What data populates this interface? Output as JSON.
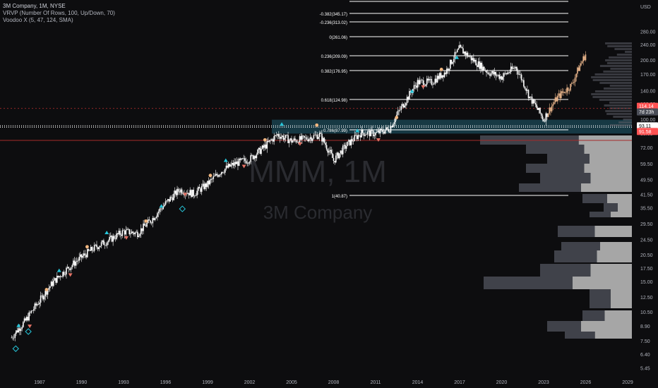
{
  "legend": {
    "symbol_line": "3M Company, 1M, NYSE",
    "vrvp_line": "VRVP (Number Of Rows, 100, Up/Down, 70)",
    "voodoo_line": "Voodoo X (5, 47, 124, SMA)"
  },
  "watermark": {
    "ticker": "MMM, 1M",
    "name": "3M Company"
  },
  "price_axis": {
    "currency": "USD",
    "ticks": [
      "280.00",
      "240.00",
      "200.00",
      "170.00",
      "140.00",
      "120.00",
      "100.00",
      "85.00",
      "72.00",
      "59.50",
      "49.50",
      "41.50",
      "35.50",
      "29.50",
      "24.50",
      "20.50",
      "17.50",
      "15.00",
      "12.50",
      "10.50",
      "8.90",
      "7.50",
      "6.40",
      "5.45"
    ],
    "badges": [
      {
        "label": "114.14",
        "color": "#ff5252"
      },
      {
        "label": "7d 23h",
        "color": "#4b4e58"
      },
      {
        "label": "93.11",
        "color": "#ffffff"
      },
      {
        "label": "91.58",
        "color": "#ff5252"
      }
    ]
  },
  "time_axis": {
    "ticks": [
      "1987",
      "1990",
      "1993",
      "1996",
      "1999",
      "2002",
      "2005",
      "2008",
      "2011",
      "2014",
      "2017",
      "2020",
      "2023",
      "2026",
      "2029"
    ]
  },
  "fib_levels": [
    {
      "ratio": "-0.382",
      "price": 345.17,
      "label": "-0.382(345.17)"
    },
    {
      "ratio": "-0.236",
      "price": 313.02,
      "label": "-0.236(313.02)"
    },
    {
      "ratio": "0",
      "price": 261.06,
      "label": "0(261.06)"
    },
    {
      "ratio": "0.236",
      "price": 209.09,
      "label": "0.236(209.09)"
    },
    {
      "ratio": "0.382",
      "price": 176.95,
      "label": "0.382(176.95)"
    },
    {
      "ratio": "0.618",
      "price": 124.98,
      "label": "0.618(124.98)"
    },
    {
      "ratio": "0.786",
      "price": 87.99,
      "label": "0.786(87.99)"
    },
    {
      "ratio": "1",
      "price": 40.87,
      "label": "1(40.87)"
    }
  ],
  "colors": {
    "background": "#0d0d0f",
    "fib_line": "#ffffff",
    "candle": "#ffffff",
    "projection": "#e8b48a",
    "volume_profile": "#4a4c55",
    "volume_profile_light": "#d9d9d9",
    "zone": "#2c8ca8",
    "red_line": "#a52a2a",
    "up_marker": "#26c6da",
    "down_marker": "#e57366",
    "circle_marker": "#f2b780"
  },
  "chart_data": {
    "type": "candlestick",
    "symbol": "3M Company",
    "interval": "1M",
    "exchange": "NYSE",
    "price_scale": "log",
    "y_unit": "USD",
    "ylim": [
      5.45,
      345.17
    ],
    "xlim": [
      "1985",
      "2030"
    ],
    "close_series": {
      "x": [
        1985,
        1986,
        1987,
        1988,
        1989,
        1990,
        1991,
        1992,
        1993,
        1994,
        1995,
        1996,
        1997,
        1998,
        1999,
        2000,
        2001,
        2002,
        2003,
        2004,
        2005,
        2006,
        2007,
        2008,
        2009,
        2010,
        2011,
        2012,
        2013,
        2014,
        2015,
        2016,
        2017,
        2018,
        2019,
        2020,
        2021,
        2022,
        2023,
        2024,
        2025,
        2026
      ],
      "y": [
        7.8,
        9.5,
        12.0,
        15.0,
        17.5,
        20.0,
        22.5,
        24.5,
        27.0,
        26.5,
        31.0,
        37.5,
        44.0,
        42.0,
        47.0,
        55.0,
        60.0,
        63.0,
        72.0,
        84.0,
        78.0,
        80.0,
        84.0,
        62.0,
        75.0,
        86.0,
        85.0,
        90.0,
        120.0,
        155.0,
        155.0,
        175.0,
        230.0,
        200.0,
        175.0,
        165.0,
        185.0,
        130.0,
        100.0,
        130.0,
        150.0,
        215.0
      ]
    },
    "volume_profile_prices": [
      93.11,
      85,
      72,
      59.5,
      49.5,
      41.5,
      35.5,
      29.5,
      24.5,
      20.5,
      17.5,
      15.0,
      12.5,
      10.5
    ]
  }
}
